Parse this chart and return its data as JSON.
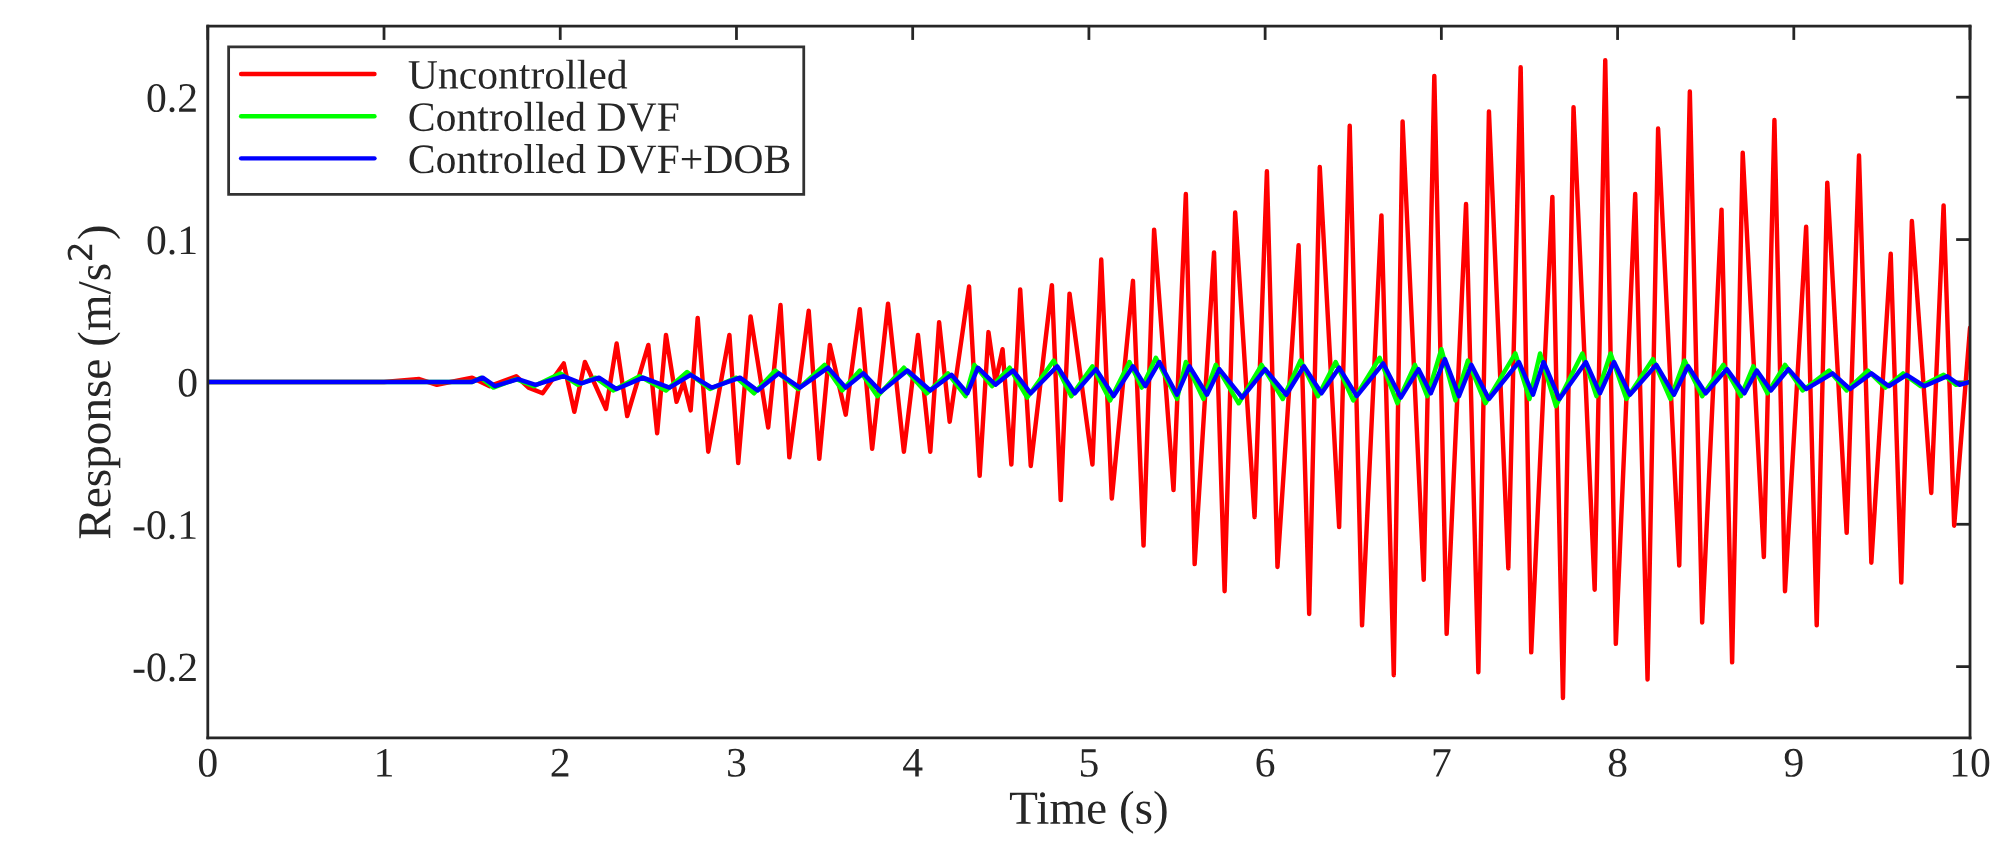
{
  "chart_data": {
    "type": "line",
    "xlabel": "Time (s)",
    "ylabel": "Response (m/s$^{2}$)",
    "xlim": [
      0,
      10
    ],
    "xticks": [
      0,
      1,
      2,
      3,
      4,
      5,
      6,
      7,
      8,
      9,
      10
    ],
    "ylim": [
      -0.25,
      0.25
    ],
    "yticks": [
      -0.2,
      -0.1,
      0,
      0.1,
      0.2
    ],
    "grid": false,
    "legend": "top left",
    "line_style": "solid",
    "marker": "none",
    "series": [
      {
        "name": "Uncontrolled",
        "color": "#ff0000",
        "x": [
          0,
          1.0,
          1.2,
          1.3,
          1.5,
          1.6,
          1.75,
          1.82,
          1.9,
          2.02,
          2.08,
          2.14,
          2.26,
          2.32,
          2.38,
          2.5,
          2.55,
          2.6,
          2.66,
          2.7,
          2.74,
          2.78,
          2.84,
          2.96,
          3.01,
          3.08,
          3.18,
          3.25,
          3.3,
          3.41,
          3.47,
          3.53,
          3.62,
          3.7,
          3.77,
          3.86,
          3.95,
          4.03,
          4.1,
          4.15,
          4.21,
          4.32,
          4.38,
          4.43,
          4.47,
          4.51,
          4.56,
          4.61,
          4.67,
          4.79,
          4.84,
          4.89,
          5.02,
          5.07,
          5.13,
          5.25,
          5.31,
          5.37,
          5.48,
          5.55,
          5.6,
          5.71,
          5.77,
          5.83,
          5.94,
          6.01,
          6.07,
          6.19,
          6.25,
          6.31,
          6.42,
          6.48,
          6.55,
          6.66,
          6.73,
          6.78,
          6.9,
          6.96,
          7.03,
          7.14,
          7.21,
          7.27,
          7.38,
          7.45,
          7.51,
          7.63,
          7.69,
          7.75,
          7.87,
          7.93,
          7.99,
          8.1,
          8.17,
          8.23,
          8.35,
          8.41,
          8.48,
          8.59,
          8.65,
          8.71,
          8.83,
          8.89,
          8.95,
          9.07,
          9.13,
          9.19,
          9.3,
          9.37,
          9.44,
          9.55,
          9.61,
          9.67,
          9.78,
          9.85,
          9.91,
          10.0
        ],
        "values": [
          0,
          0,
          0.002,
          -0.002,
          0.003,
          -0.003,
          0.004,
          -0.004,
          -0.008,
          0.013,
          -0.021,
          0.014,
          -0.019,
          0.027,
          -0.024,
          0.026,
          -0.036,
          0.033,
          -0.014,
          0.0,
          -0.02,
          0.045,
          -0.049,
          0.033,
          -0.057,
          0.046,
          -0.032,
          0.054,
          -0.053,
          0.05,
          -0.054,
          0.026,
          -0.023,
          0.051,
          -0.047,
          0.055,
          -0.049,
          0.033,
          -0.049,
          0.042,
          -0.028,
          0.067,
          -0.066,
          0.035,
          0.0,
          0.023,
          -0.058,
          0.065,
          -0.059,
          0.068,
          -0.083,
          0.062,
          -0.058,
          0.086,
          -0.082,
          0.071,
          -0.115,
          0.107,
          -0.076,
          0.132,
          -0.128,
          0.091,
          -0.147,
          0.119,
          -0.095,
          0.148,
          -0.13,
          0.096,
          -0.163,
          0.151,
          -0.102,
          0.18,
          -0.171,
          0.117,
          -0.206,
          0.183,
          -0.139,
          0.215,
          -0.177,
          0.125,
          -0.204,
          0.19,
          -0.131,
          0.221,
          -0.19,
          0.13,
          -0.222,
          0.193,
          -0.146,
          0.226,
          -0.184,
          0.132,
          -0.209,
          0.178,
          -0.129,
          0.204,
          -0.169,
          0.121,
          -0.197,
          0.161,
          -0.123,
          0.184,
          -0.147,
          0.109,
          -0.171,
          0.14,
          -0.106,
          0.159,
          -0.127,
          0.09,
          -0.141,
          0.113,
          -0.078,
          0.124,
          -0.101,
          0.038
        ]
      },
      {
        "name": "Controlled DVF",
        "color": "#00ff00",
        "x": [
          0,
          1.5,
          1.55,
          1.62,
          1.75,
          1.85,
          2.0,
          2.1,
          2.2,
          2.3,
          2.45,
          2.6,
          2.72,
          2.85,
          3.0,
          3.1,
          3.22,
          3.35,
          3.5,
          3.6,
          3.7,
          3.8,
          3.95,
          4.08,
          4.2,
          4.3,
          4.35,
          4.45,
          4.55,
          4.65,
          4.8,
          4.9,
          5.02,
          5.12,
          5.23,
          5.3,
          5.38,
          5.5,
          5.55,
          5.65,
          5.72,
          5.85,
          5.98,
          6.1,
          6.2,
          6.3,
          6.4,
          6.5,
          6.65,
          6.75,
          6.85,
          6.92,
          7.0,
          7.08,
          7.15,
          7.25,
          7.42,
          7.5,
          7.56,
          7.65,
          7.8,
          7.88,
          7.96,
          8.05,
          8.2,
          8.3,
          8.38,
          8.48,
          8.6,
          8.7,
          8.77,
          8.85,
          8.95,
          9.05,
          9.2,
          9.3,
          9.42,
          9.52,
          9.62,
          9.72,
          9.85,
          9.92,
          10.0
        ],
        "values": [
          0,
          0,
          0.003,
          -0.004,
          0.002,
          -0.003,
          0.006,
          -0.002,
          0.003,
          -0.006,
          0.004,
          -0.006,
          0.007,
          -0.005,
          0.003,
          -0.008,
          0.008,
          -0.005,
          0.012,
          -0.006,
          0.008,
          -0.01,
          0.01,
          -0.008,
          0.006,
          -0.01,
          0.012,
          -0.003,
          0.01,
          -0.011,
          0.015,
          -0.01,
          0.011,
          -0.013,
          0.014,
          -0.004,
          0.017,
          -0.012,
          0.014,
          -0.012,
          0.012,
          -0.015,
          0.012,
          -0.012,
          0.015,
          -0.01,
          0.014,
          -0.013,
          0.017,
          -0.015,
          0.012,
          -0.01,
          0.023,
          -0.013,
          0.015,
          -0.015,
          0.02,
          -0.012,
          0.02,
          -0.017,
          0.02,
          -0.01,
          0.02,
          -0.012,
          0.016,
          -0.012,
          0.015,
          -0.01,
          0.012,
          -0.01,
          0.011,
          -0.008,
          0.012,
          -0.006,
          0.008,
          -0.006,
          0.008,
          -0.004,
          0.006,
          -0.003,
          0.005,
          -0.002,
          0.0
        ]
      },
      {
        "name": "Controlled DVF+DOB",
        "color": "#0000ff",
        "x": [
          0,
          1.5,
          1.56,
          1.63,
          1.76,
          1.86,
          2.02,
          2.12,
          2.22,
          2.32,
          2.47,
          2.62,
          2.74,
          2.86,
          3.02,
          3.12,
          3.24,
          3.36,
          3.52,
          3.62,
          3.72,
          3.82,
          3.97,
          4.1,
          4.22,
          4.31,
          4.37,
          4.47,
          4.57,
          4.67,
          4.82,
          4.92,
          5.04,
          5.14,
          5.25,
          5.32,
          5.4,
          5.5,
          5.57,
          5.67,
          5.74,
          5.87,
          6.0,
          6.12,
          6.22,
          6.32,
          6.42,
          6.52,
          6.67,
          6.77,
          6.87,
          6.94,
          7.02,
          7.1,
          7.17,
          7.27,
          7.44,
          7.52,
          7.58,
          7.67,
          7.82,
          7.9,
          7.98,
          8.07,
          8.22,
          8.32,
          8.4,
          8.5,
          8.62,
          8.72,
          8.79,
          8.87,
          8.97,
          9.07,
          9.22,
          9.32,
          9.44,
          9.54,
          9.64,
          9.74,
          9.87,
          9.94,
          10.0
        ],
        "values": [
          0,
          0,
          0.003,
          -0.003,
          0.002,
          -0.002,
          0.004,
          -0.001,
          0.003,
          -0.005,
          0.003,
          -0.004,
          0.005,
          -0.004,
          0.003,
          -0.006,
          0.006,
          -0.004,
          0.01,
          -0.004,
          0.006,
          -0.007,
          0.008,
          -0.006,
          0.005,
          -0.008,
          0.01,
          -0.002,
          0.008,
          -0.008,
          0.011,
          -0.008,
          0.009,
          -0.01,
          0.011,
          -0.003,
          0.014,
          -0.009,
          0.011,
          -0.009,
          0.009,
          -0.011,
          0.009,
          -0.009,
          0.011,
          -0.008,
          0.01,
          -0.01,
          0.013,
          -0.011,
          0.009,
          -0.008,
          0.016,
          -0.01,
          0.012,
          -0.012,
          0.014,
          -0.009,
          0.014,
          -0.012,
          0.014,
          -0.008,
          0.014,
          -0.009,
          0.012,
          -0.009,
          0.011,
          -0.008,
          0.009,
          -0.008,
          0.008,
          -0.006,
          0.009,
          -0.005,
          0.006,
          -0.005,
          0.006,
          -0.003,
          0.005,
          -0.003,
          0.004,
          -0.002,
          0.0
        ]
      }
    ]
  }
}
